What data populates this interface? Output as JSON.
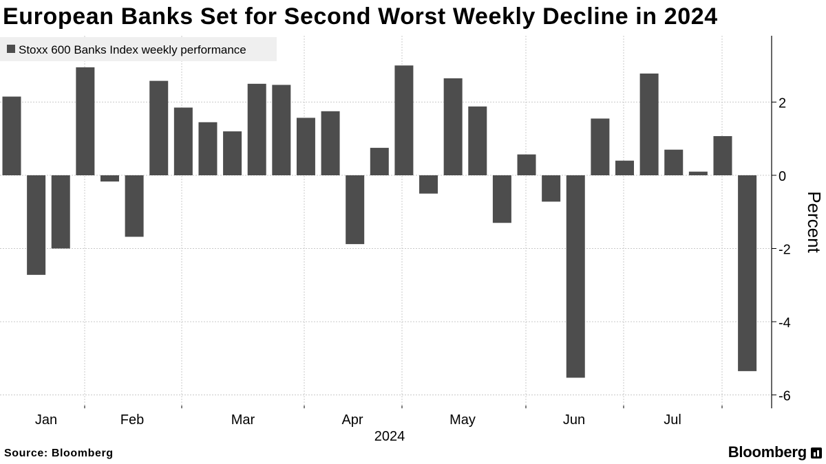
{
  "title": "European Banks Set for Second Worst Weekly Decline in 2024",
  "footer": {
    "source": "Source: Bloomberg",
    "brand": "Bloomberg"
  },
  "colors": {
    "bar": "#4d4d4d",
    "grid": "#c8c8c8",
    "axis": "#000000",
    "legend_bg": "#efefef"
  },
  "chart_data": {
    "type": "bar",
    "grid": true,
    "legend_position": "top-left",
    "series": [
      {
        "name": "Stoxx 600 Banks Index weekly performance",
        "values": [
          2.15,
          -2.72,
          -2.0,
          2.95,
          -0.17,
          -1.68,
          2.58,
          1.85,
          1.45,
          1.2,
          2.5,
          2.47,
          1.57,
          1.75,
          -1.88,
          0.75,
          3.0,
          -0.5,
          2.65,
          1.88,
          -1.3,
          0.57,
          -0.72,
          -5.53,
          1.55,
          0.4,
          2.78,
          0.7,
          0.1,
          1.07,
          -5.35
        ]
      }
    ],
    "x_tick_labels": [
      "Jan",
      "Feb",
      "Mar",
      "Apr",
      "May",
      "Jun",
      "Jul"
    ],
    "x_year_label": "2024",
    "y_axis": {
      "label": "Percent",
      "ticks": [
        2,
        0,
        -2,
        -4,
        -6
      ],
      "tick_labels": [
        "2",
        "0",
        "-2",
        "-4",
        "-6"
      ],
      "range": [
        -6.35,
        3.85
      ],
      "position": "right"
    }
  }
}
